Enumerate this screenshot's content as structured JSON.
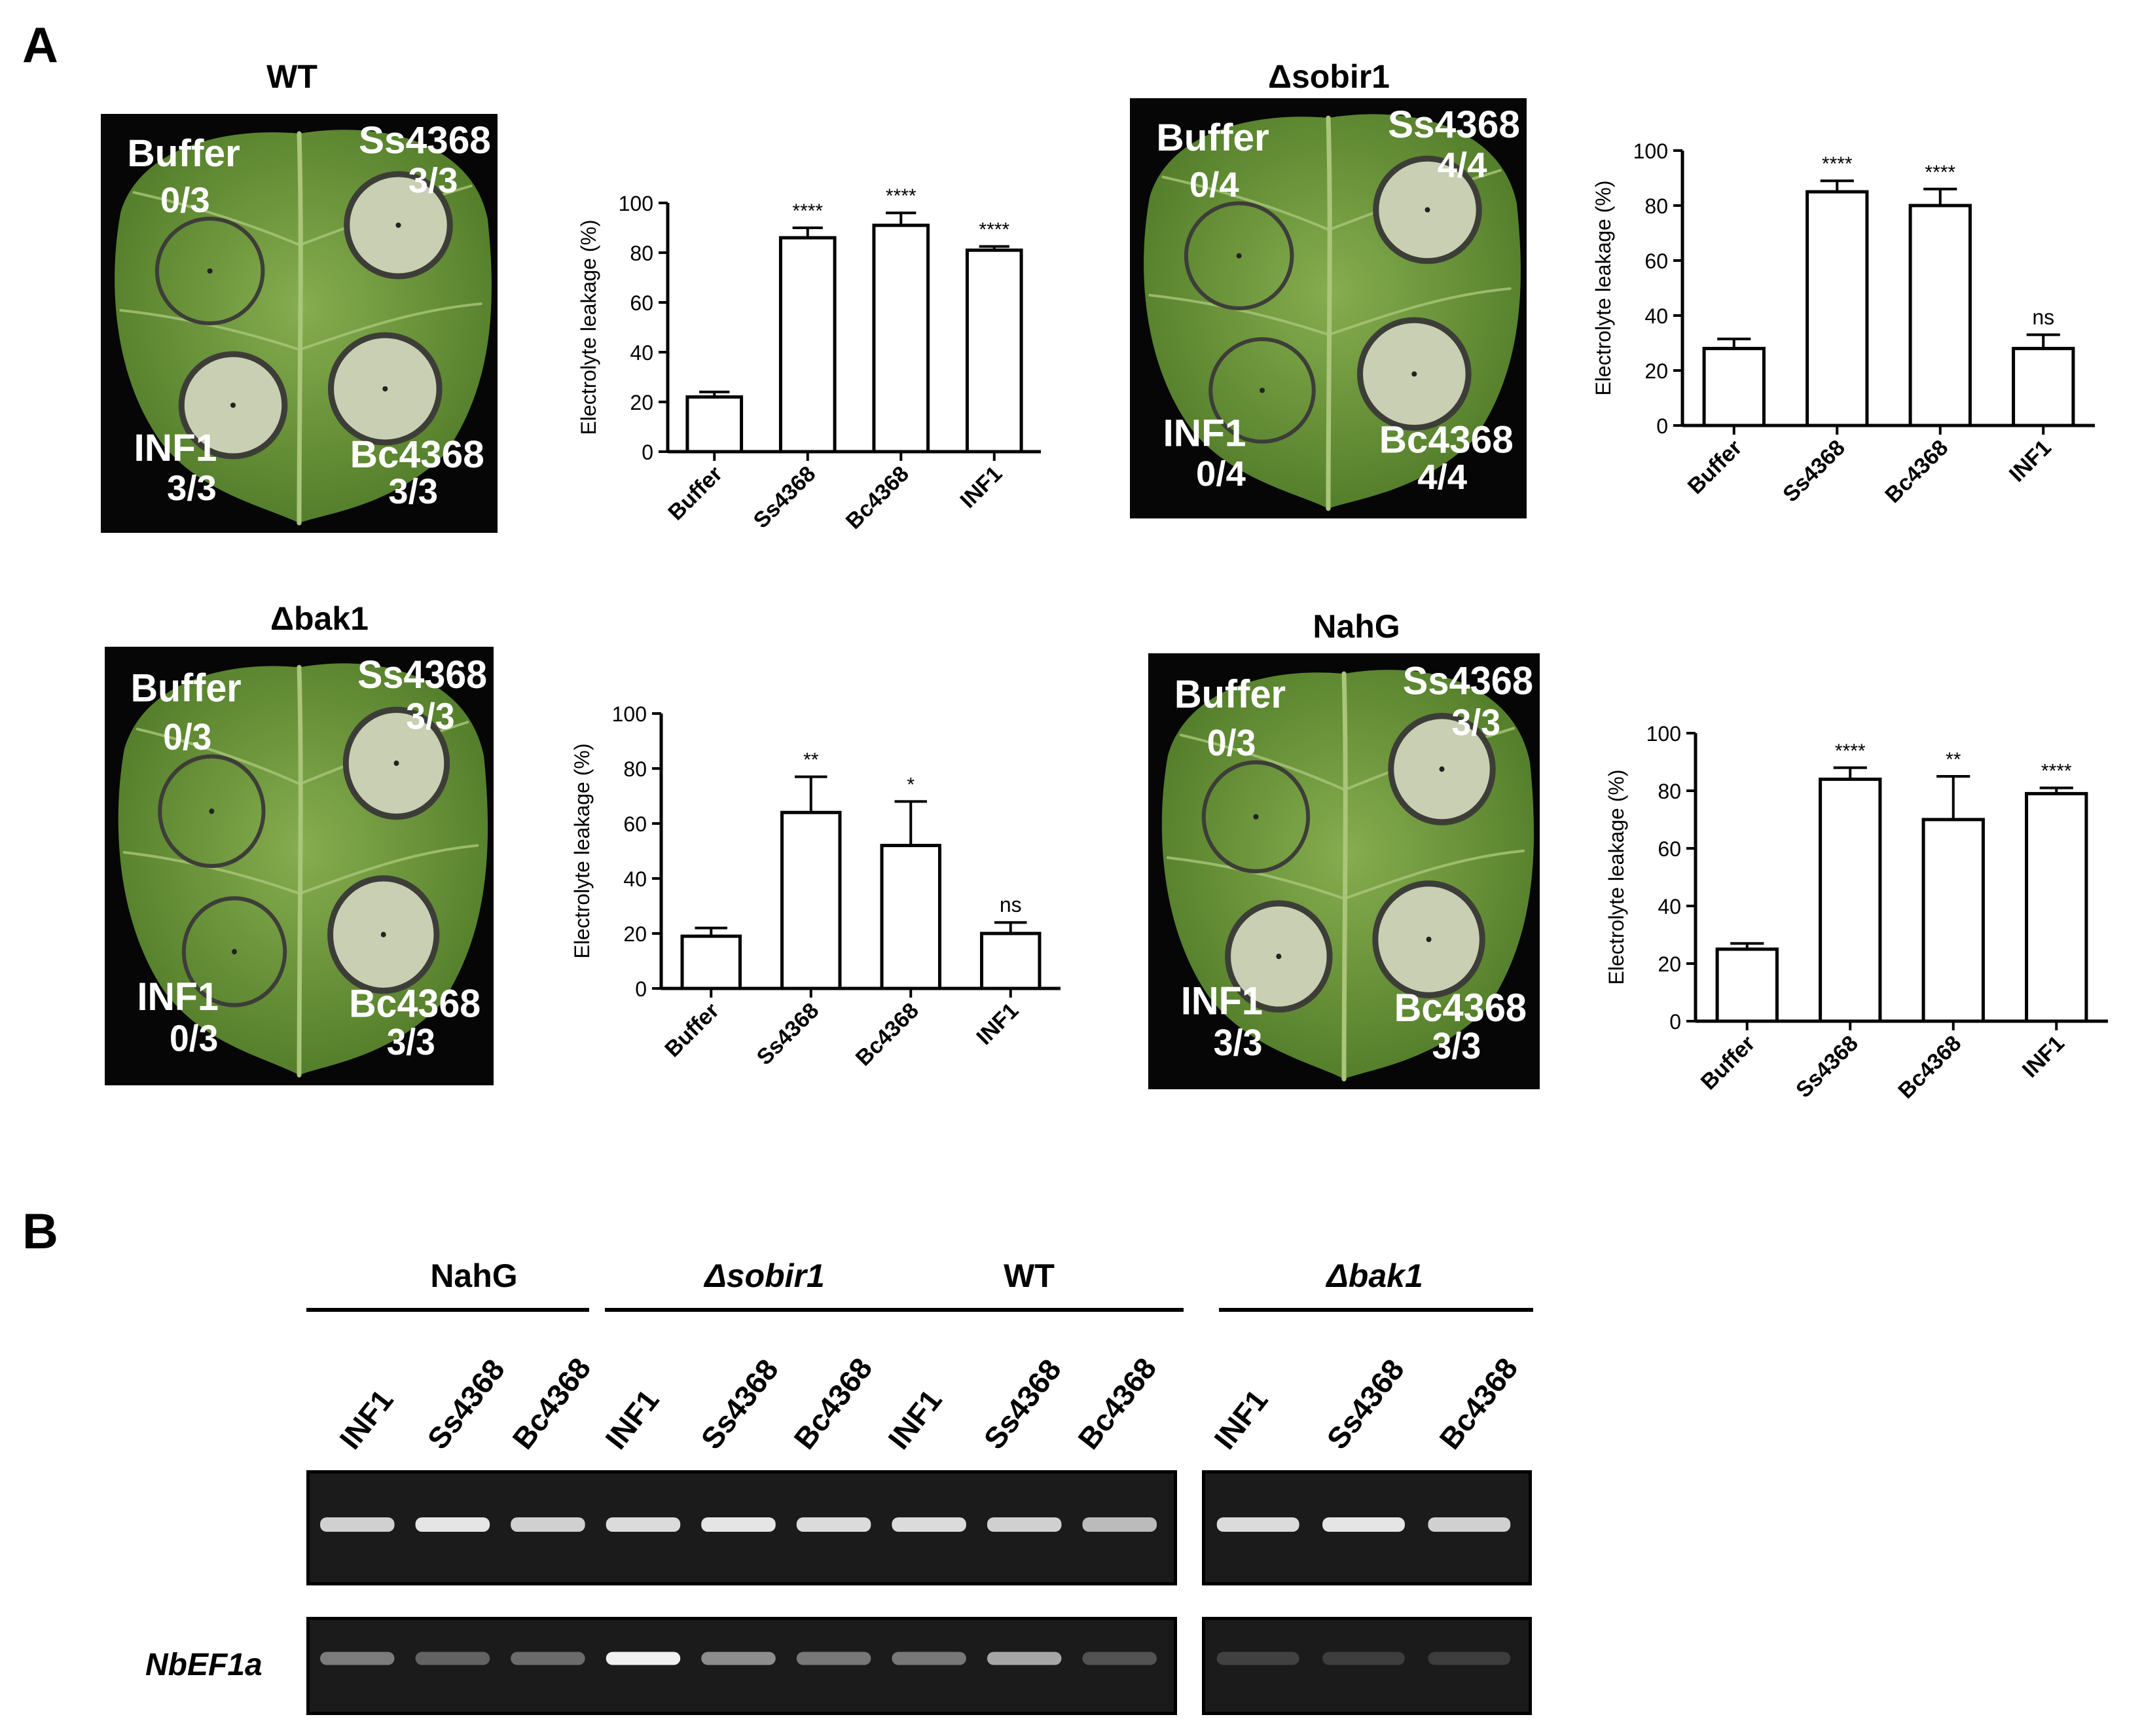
{
  "panel_a": {
    "letter": "A",
    "leaves": [
      {
        "title": "WT",
        "title_italic": false,
        "spots": [
          {
            "name": "Buffer",
            "score": "0/3",
            "necrotic": false
          },
          {
            "name": "Ss4368",
            "score": "3/3",
            "necrotic": true
          },
          {
            "name": "INF1",
            "score": "3/3",
            "necrotic": true
          },
          {
            "name": "Bc4368",
            "score": "3/3",
            "necrotic": true
          }
        ]
      },
      {
        "title": "Δsobir1",
        "title_italic": true,
        "spots": [
          {
            "name": "Buffer",
            "score": "0/4",
            "necrotic": false
          },
          {
            "name": "Ss4368",
            "score": "4/4",
            "necrotic": true
          },
          {
            "name": "INF1",
            "score": "0/4",
            "necrotic": false
          },
          {
            "name": "Bc4368",
            "score": "4/4",
            "necrotic": true
          }
        ]
      },
      {
        "title": "Δbak1",
        "title_italic": true,
        "spots": [
          {
            "name": "Buffer",
            "score": "0/3",
            "necrotic": false
          },
          {
            "name": "Ss4368",
            "score": "3/3",
            "necrotic": true
          },
          {
            "name": "INF1",
            "score": "0/3",
            "necrotic": false
          },
          {
            "name": "Bc4368",
            "score": "3/3",
            "necrotic": true
          }
        ]
      },
      {
        "title": "NahG",
        "title_italic": false,
        "spots": [
          {
            "name": "Buffer",
            "score": "0/3",
            "necrotic": false
          },
          {
            "name": "Ss4368",
            "score": "3/3",
            "necrotic": true
          },
          {
            "name": "INF1",
            "score": "3/3",
            "necrotic": true
          },
          {
            "name": "Bc4368",
            "score": "3/3",
            "necrotic": true
          }
        ]
      }
    ]
  },
  "chart_data": [
    {
      "type": "bar",
      "panel": "WT",
      "categories": [
        "Buffer",
        "Ss4368",
        "Bc4368",
        "INF1"
      ],
      "values": [
        22,
        86,
        91,
        81
      ],
      "errors": [
        2,
        4,
        5,
        1.5
      ],
      "significance": [
        "",
        "****",
        "****",
        "****"
      ],
      "ylabel": "Electrolyte leakage (%)",
      "ylim": [
        0,
        100
      ],
      "yticks": [
        "0",
        "20",
        "40",
        "60",
        "80",
        "100"
      ]
    },
    {
      "type": "bar",
      "panel": "Δsobir1",
      "categories": [
        "Buffer",
        "Ss4368",
        "Bc4368",
        "INF1"
      ],
      "values": [
        28,
        85,
        80,
        28
      ],
      "errors": [
        3.5,
        4,
        6,
        5
      ],
      "significance": [
        "",
        "****",
        "****",
        "ns"
      ],
      "ylabel": "Electrolyte leakage (%)",
      "ylim": [
        0,
        100
      ],
      "yticks": [
        "0",
        "20",
        "40",
        "60",
        "80",
        "100"
      ]
    },
    {
      "type": "bar",
      "panel": "Δbak1",
      "categories": [
        "Buffer",
        "Ss4368",
        "Bc4368",
        "INF1"
      ],
      "values": [
        19,
        64,
        52,
        20
      ],
      "errors": [
        3,
        13,
        16,
        4
      ],
      "significance": [
        "",
        "**",
        "*",
        "ns"
      ],
      "ylabel": "Electrolyte leakage (%)",
      "ylim": [
        0,
        100
      ],
      "yticks": [
        "0",
        "20",
        "40",
        "60",
        "80",
        "100"
      ]
    },
    {
      "type": "bar",
      "panel": "NahG",
      "categories": [
        "Buffer",
        "Ss4368",
        "Bc4368",
        "INF1"
      ],
      "values": [
        25,
        84,
        70,
        79
      ],
      "errors": [
        2,
        4,
        15,
        2
      ],
      "significance": [
        "",
        "****",
        "**",
        "****"
      ],
      "ylabel": "Electrolyte leakage (%)",
      "ylim": [
        0,
        100
      ],
      "yticks": [
        "0",
        "20",
        "40",
        "60",
        "80",
        "100"
      ]
    }
  ],
  "panel_b": {
    "letter": "B",
    "groups": [
      {
        "label": "NahG",
        "italic": false
      },
      {
        "label": "Δsobir1",
        "italic": true
      },
      {
        "label": "WT",
        "italic": false
      },
      {
        "label": "Δbak1",
        "italic": true
      }
    ],
    "lanes": [
      "INF1",
      "Ss4368",
      "Bc4368"
    ],
    "row_label": "NbEF1a",
    "top_band_intensity": [
      0.8,
      0.9,
      0.8,
      0.85,
      0.9,
      0.85,
      0.85,
      0.8,
      0.7,
      0.85,
      0.9,
      0.8
    ],
    "bottom_band_intensity": [
      0.4,
      0.28,
      0.32,
      0.95,
      0.48,
      0.38,
      0.38,
      0.6,
      0.2,
      0.12,
      0.1,
      0.1
    ]
  },
  "colors": {
    "leaf": "#6f9b3c",
    "leaf_dark": "#4f7a27",
    "necrosis": "#c9cfb2",
    "ring": "#3d3d38",
    "background_photo": "#060606",
    "gel_bg": "#1b1b1b",
    "band": "#f2f2f2"
  }
}
